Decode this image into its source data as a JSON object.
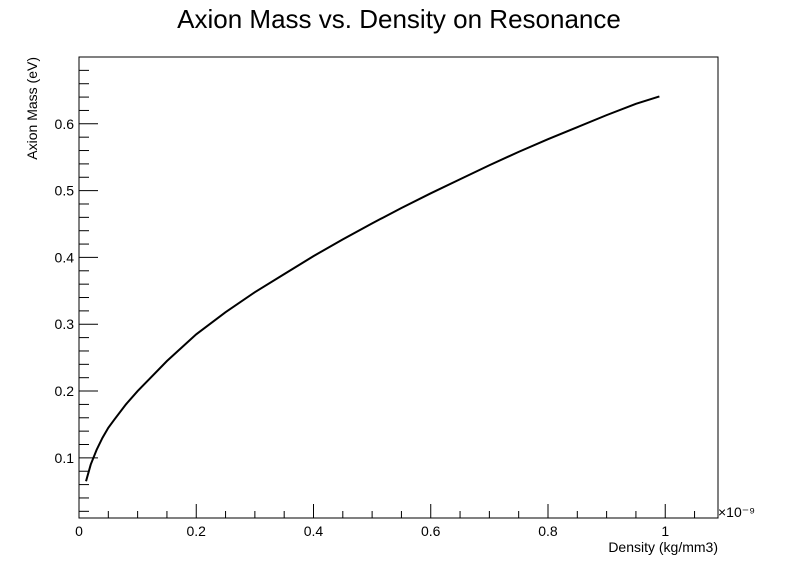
{
  "chart_data": {
    "type": "line",
    "title": "Axion Mass vs. Density on Resonance",
    "xlabel": "Density (kg/mm3)",
    "ylabel": "Axion Mass (eV)",
    "x_exponent_label": "×10⁻⁹",
    "xlim": [
      0,
      1.09
    ],
    "ylim": [
      0.01,
      0.7
    ],
    "x_scale": "×1e-9",
    "xticks": [
      0,
      0.2,
      0.4,
      0.6,
      0.8,
      1
    ],
    "xtick_labels": [
      "0",
      "0.2",
      "0.4",
      "0.6",
      "0.8",
      "1"
    ],
    "yticks": [
      0.1,
      0.2,
      0.3,
      0.4,
      0.5,
      0.6
    ],
    "ytick_labels": [
      "0.1",
      "0.2",
      "0.3",
      "0.4",
      "0.5",
      "0.6"
    ],
    "grid": false,
    "legend": "none",
    "line_color": "#000000",
    "series": [
      {
        "x": [
          0.012,
          0.02,
          0.03,
          0.04,
          0.05,
          0.06,
          0.08,
          0.1,
          0.12,
          0.15,
          0.2,
          0.25,
          0.3,
          0.35,
          0.4,
          0.45,
          0.5,
          0.55,
          0.6,
          0.65,
          0.7,
          0.75,
          0.8,
          0.85,
          0.9,
          0.95,
          0.99
        ],
        "y": [
          0.065,
          0.09,
          0.112,
          0.13,
          0.145,
          0.157,
          0.18,
          0.2,
          0.218,
          0.245,
          0.285,
          0.318,
          0.348,
          0.375,
          0.402,
          0.427,
          0.451,
          0.474,
          0.496,
          0.517,
          0.538,
          0.558,
          0.577,
          0.595,
          0.613,
          0.63,
          0.641
        ]
      }
    ]
  }
}
